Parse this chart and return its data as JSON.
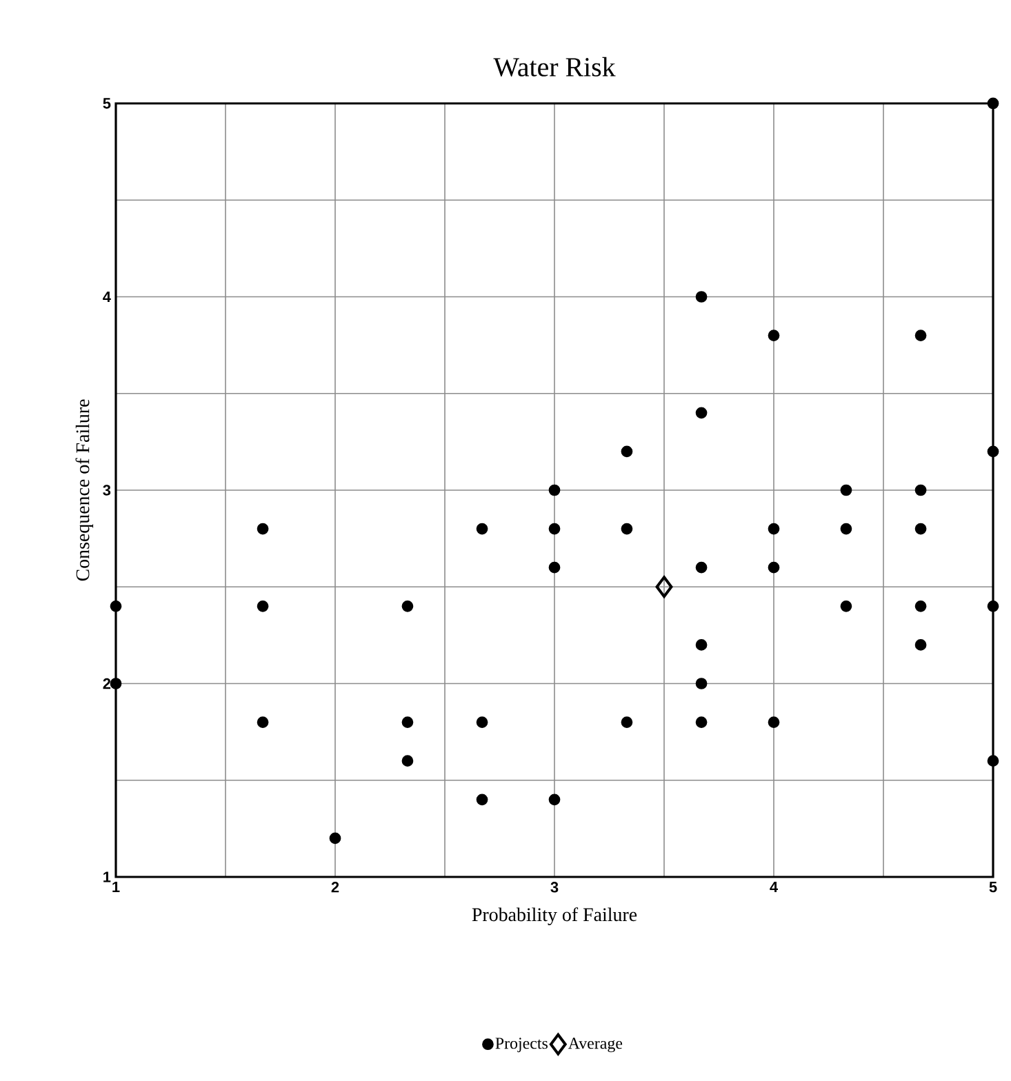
{
  "chart_data": {
    "type": "scatter",
    "title": "Water Risk",
    "xlabel": "Probability of Failure",
    "ylabel": "Consequence of Failure",
    "xlim": [
      1,
      5
    ],
    "ylim": [
      1,
      5
    ],
    "xticks": [
      1,
      2,
      3,
      4,
      5
    ],
    "yticks": [
      1,
      2,
      3,
      4,
      5
    ],
    "grid": true,
    "legend": "bottom",
    "series": [
      {
        "name": "Projects",
        "color": "#000000",
        "marker": "circle",
        "x": [
          1,
          1,
          1.67,
          1.67,
          1.67,
          2,
          2.33,
          2.33,
          2.33,
          2.67,
          2.67,
          2.67,
          3,
          3,
          3,
          3,
          3.33,
          3.33,
          3.33,
          3.67,
          3.67,
          3.67,
          3.67,
          3.67,
          3.67,
          4,
          4,
          4,
          4,
          4.33,
          4.33,
          4.33,
          4.67,
          4.67,
          4.67,
          4.67,
          4.67,
          5,
          5,
          5,
          5
        ],
        "values": [
          2.4,
          2.0,
          2.8,
          2.4,
          1.8,
          1.2,
          2.4,
          1.8,
          1.6,
          2.8,
          1.8,
          1.4,
          3.0,
          2.8,
          2.6,
          1.4,
          3.2,
          2.8,
          1.8,
          4.0,
          3.4,
          2.6,
          2.2,
          2.0,
          1.8,
          3.8,
          2.8,
          2.6,
          1.8,
          3.0,
          2.8,
          2.4,
          3.8,
          3.0,
          2.8,
          2.4,
          2.2,
          5.0,
          3.2,
          2.4,
          1.6
        ]
      },
      {
        "name": "Average",
        "color": "#000000",
        "marker": "diamond",
        "x": [
          3.5
        ],
        "values": [
          2.5
        ]
      }
    ]
  }
}
